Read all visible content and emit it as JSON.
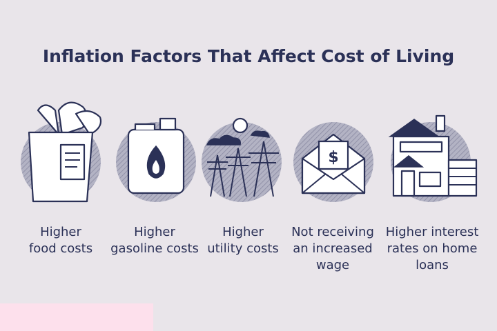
{
  "header": {
    "title": "Inflation Factors That Affect Cost of Living"
  },
  "items": [
    {
      "label_lines": [
        "Higher",
        "food costs"
      ]
    },
    {
      "label_lines": [
        "Higher",
        "gasoline costs"
      ]
    },
    {
      "label_lines": [
        "Higher",
        "utility costs"
      ]
    },
    {
      "label_lines": [
        "Not receiving",
        "an increased",
        "wage"
      ]
    },
    {
      "label_lines": [
        "Higher interest",
        "rates on home",
        "loans"
      ]
    }
  ]
}
